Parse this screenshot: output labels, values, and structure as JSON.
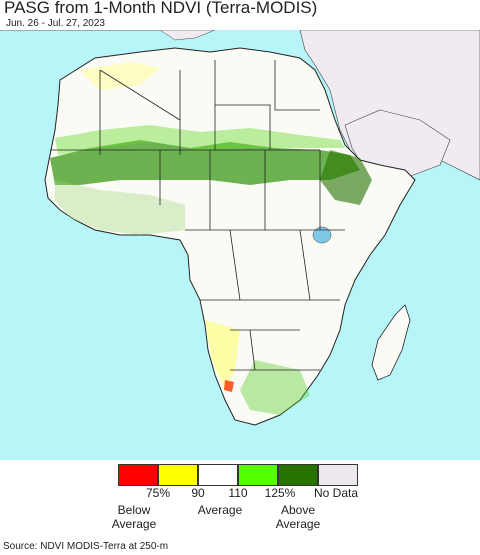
{
  "title": "PASG from 1-Month NDVI (Terra-MODIS)",
  "subtitle": "Jun. 26 - Jul. 27, 2023",
  "colors": {
    "ocean": "#b7f5f9",
    "land_other": "#efebf0",
    "land_africa": "#fbfbf6",
    "border": "#222222"
  },
  "legend": {
    "classes": [
      {
        "name": "below-75",
        "color": "#ff0000"
      },
      {
        "name": "75-90",
        "color": "#ffff00"
      },
      {
        "name": "90-110",
        "color": "#ffffff"
      },
      {
        "name": "110-125",
        "color": "#55ff00"
      },
      {
        "name": "above-125",
        "color": "#267300"
      },
      {
        "name": "no-data",
        "color": "#ede8ed"
      }
    ],
    "ticks": [
      "75%",
      "90",
      "110",
      "125%",
      "No Data"
    ],
    "below_line1": "Below",
    "below_line2": "Average",
    "average": "Average",
    "above_line1": "Above",
    "above_line2": "Average"
  },
  "source": "Source: NDVI MODIS-Terra at 250-m"
}
